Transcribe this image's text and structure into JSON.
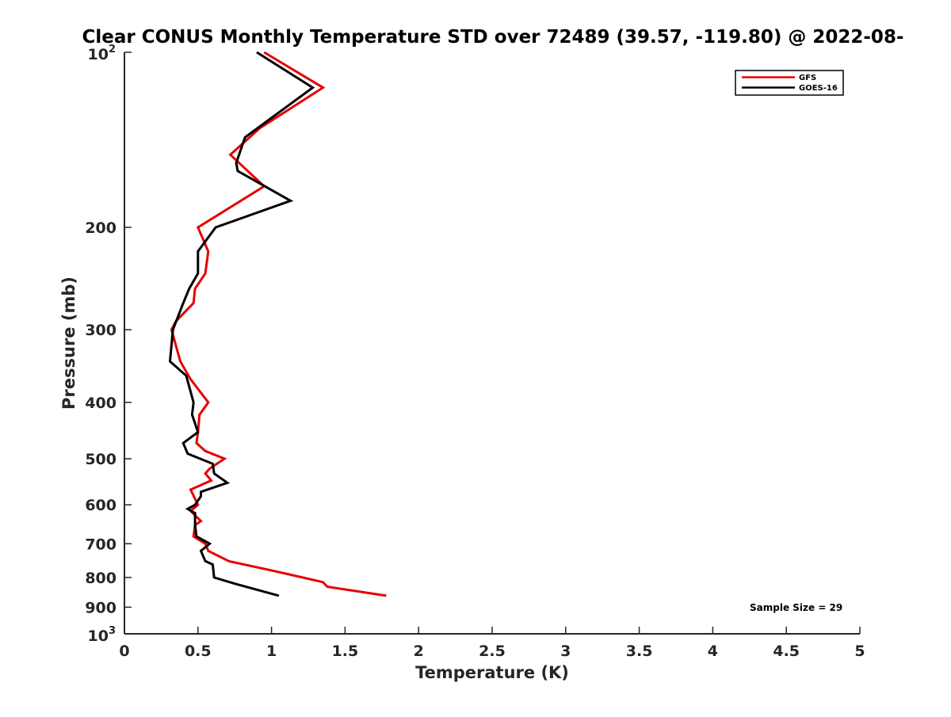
{
  "chart_data": {
    "type": "line",
    "title": "Clear CONUS Monthly Temperature STD over 72489 (39.57, -119.80) @ 2022-08-",
    "xlabel": "Temperature (K)",
    "ylabel": "Pressure (mb)",
    "xlim": [
      0,
      5
    ],
    "ylim": [
      100,
      1000
    ],
    "yscale": "log",
    "y_reversed": true,
    "grid": false,
    "legend_position": "top-right",
    "x_ticks": [
      {
        "value": 0,
        "label": "0"
      },
      {
        "value": 0.5,
        "label": "0.5"
      },
      {
        "value": 1,
        "label": "1"
      },
      {
        "value": 1.5,
        "label": "1.5"
      },
      {
        "value": 2,
        "label": "2"
      },
      {
        "value": 2.5,
        "label": "2.5"
      },
      {
        "value": 3,
        "label": "3"
      },
      {
        "value": 3.5,
        "label": "3.5"
      },
      {
        "value": 4,
        "label": "4"
      },
      {
        "value": 4.5,
        "label": "4.5"
      },
      {
        "value": 5,
        "label": "5"
      }
    ],
    "y_ticks": [
      {
        "value": 100,
        "base": "10",
        "exp": "2"
      },
      {
        "value": 200,
        "label": "200"
      },
      {
        "value": 300,
        "label": "300"
      },
      {
        "value": 400,
        "label": "400"
      },
      {
        "value": 500,
        "label": "500"
      },
      {
        "value": 600,
        "label": "600"
      },
      {
        "value": 700,
        "label": "700"
      },
      {
        "value": 800,
        "label": "800"
      },
      {
        "value": 900,
        "label": "900"
      },
      {
        "value": 1000,
        "base": "10",
        "exp": "3"
      }
    ],
    "series": [
      {
        "name": "GFS",
        "color": "#e60000",
        "points": [
          [
            0.95,
            100
          ],
          [
            1.35,
            115
          ],
          [
            0.92,
            135
          ],
          [
            0.72,
            150
          ],
          [
            0.95,
            170
          ],
          [
            0.5,
            200
          ],
          [
            0.57,
            220
          ],
          [
            0.55,
            240
          ],
          [
            0.48,
            255
          ],
          [
            0.47,
            270
          ],
          [
            0.35,
            290
          ],
          [
            0.32,
            300
          ],
          [
            0.38,
            340
          ],
          [
            0.45,
            365
          ],
          [
            0.57,
            400
          ],
          [
            0.51,
            420
          ],
          [
            0.5,
            450
          ],
          [
            0.49,
            470
          ],
          [
            0.55,
            485
          ],
          [
            0.68,
            500
          ],
          [
            0.58,
            520
          ],
          [
            0.55,
            530
          ],
          [
            0.59,
            545
          ],
          [
            0.45,
            565
          ],
          [
            0.5,
            600
          ],
          [
            0.45,
            615
          ],
          [
            0.52,
            640
          ],
          [
            0.48,
            650
          ],
          [
            0.47,
            680
          ],
          [
            0.55,
            700
          ],
          [
            0.57,
            720
          ],
          [
            0.71,
            750
          ],
          [
            1.02,
            780
          ],
          [
            1.35,
            815
          ],
          [
            1.38,
            830
          ],
          [
            1.78,
            860
          ]
        ]
      },
      {
        "name": "GOES-16",
        "color": "#000000",
        "points": [
          [
            0.9,
            100
          ],
          [
            1.28,
            115
          ],
          [
            0.82,
            140
          ],
          [
            0.76,
            155
          ],
          [
            0.77,
            160
          ],
          [
            1.13,
            180
          ],
          [
            0.62,
            200
          ],
          [
            0.5,
            220
          ],
          [
            0.5,
            240
          ],
          [
            0.44,
            255
          ],
          [
            0.4,
            270
          ],
          [
            0.33,
            300
          ],
          [
            0.31,
            340
          ],
          [
            0.42,
            360
          ],
          [
            0.47,
            400
          ],
          [
            0.46,
            420
          ],
          [
            0.5,
            450
          ],
          [
            0.4,
            470
          ],
          [
            0.43,
            490
          ],
          [
            0.6,
            510
          ],
          [
            0.61,
            530
          ],
          [
            0.7,
            550
          ],
          [
            0.52,
            570
          ],
          [
            0.52,
            580
          ],
          [
            0.48,
            600
          ],
          [
            0.43,
            610
          ],
          [
            0.48,
            620
          ],
          [
            0.48,
            650
          ],
          [
            0.49,
            680
          ],
          [
            0.58,
            700
          ],
          [
            0.52,
            720
          ],
          [
            0.55,
            750
          ],
          [
            0.6,
            760
          ],
          [
            0.61,
            800
          ],
          [
            0.75,
            820
          ],
          [
            1.05,
            860
          ]
        ]
      }
    ],
    "annotations": [
      {
        "text": "Sample Size = 29",
        "x": 4.5,
        "y": 930,
        "position": "bottom-right"
      }
    ]
  }
}
